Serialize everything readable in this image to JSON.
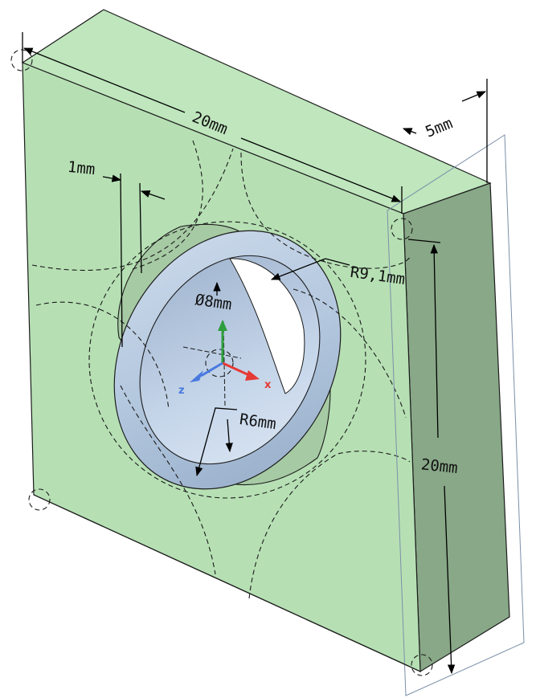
{
  "dimensions": {
    "width": "20mm",
    "thickness": "5mm",
    "height": "20mm",
    "step": "1mm",
    "outer_radius": "R9,1mm",
    "hole_diameter": "Ø8mm",
    "inner_radius": "R6mm"
  },
  "axes": {
    "x": "x",
    "y": "y",
    "z": "z"
  },
  "colors": {
    "face_front": "#b6e0b4",
    "face_top": "#bfe6bd",
    "face_side": "#88a887",
    "ring": "#b9cde3",
    "ring_dark": "#8fa7c4",
    "axis_x": "#e53935",
    "axis_y": "#2e9e3e",
    "axis_z": "#4a7ae0"
  }
}
